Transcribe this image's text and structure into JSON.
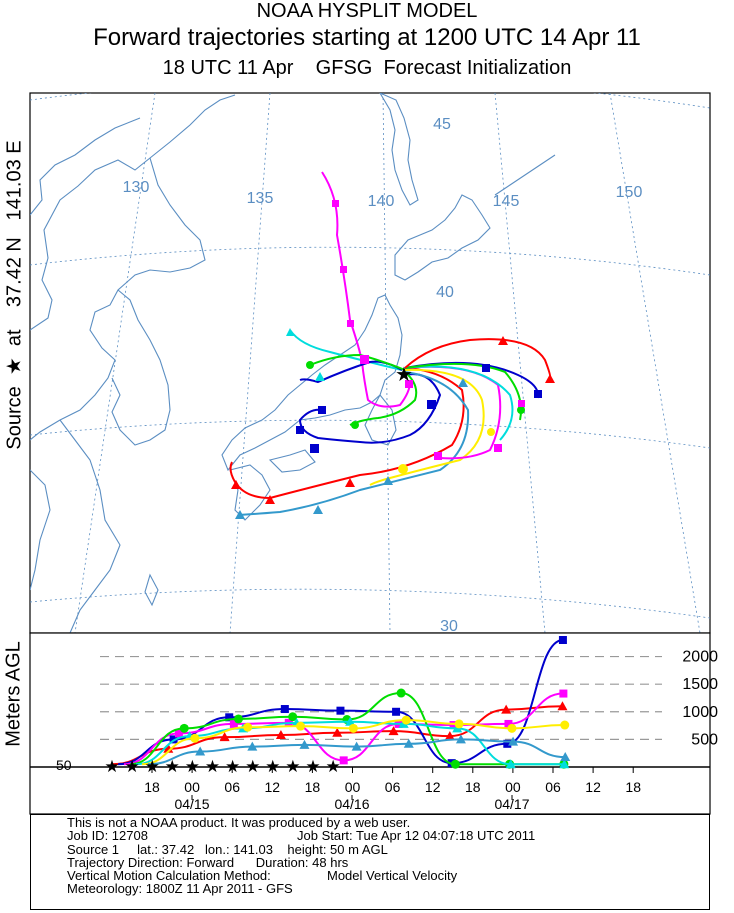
{
  "header": {
    "line1": "NOAA HYSPLIT MODEL",
    "line2": "Forward trajectories starting at 1200 UTC 14 Apr 11",
    "line3": "18 UTC 11 Apr    GFSG  Forecast Initialization"
  },
  "source_label": "Source  ★  at    37.42 N   141.03 E",
  "vertical_label": "Meters AGL",
  "map": {
    "lon_labels": [
      "130",
      "135",
      "140",
      "145",
      "150"
    ],
    "lat_labels": [
      "45",
      "40",
      "30"
    ],
    "colors": {
      "land": "#5b8ec2",
      "grid": "#5b8ec2",
      "frame": "#000000"
    }
  },
  "chart_data": {
    "type": "line",
    "title": "Forward trajectories starting at 1200 UTC 14 Apr 11",
    "ylabel": "Meters AGL",
    "y_ticks": [
      "2000",
      "1500",
      "1000",
      "500"
    ],
    "y_start_label": "50",
    "x_tick_labels": [
      "18",
      "00",
      "06",
      "12",
      "18",
      "00",
      "06",
      "12",
      "18",
      "00",
      "06",
      "12",
      "18"
    ],
    "date_labels": [
      "04/15",
      "04/16",
      "04/17"
    ],
    "ylim": [
      0,
      2300
    ],
    "x_hours_range": [
      -6,
      54
    ],
    "series": [
      {
        "color": "#ff0000",
        "x": [
          0,
          6,
          12,
          18,
          24,
          30,
          36,
          42,
          48
        ],
        "y": [
          50,
          330,
          540,
          580,
          620,
          650,
          560,
          1040,
          1100
        ]
      },
      {
        "color": "#0000cc",
        "x": [
          0,
          6,
          12,
          18,
          24,
          30,
          36,
          42,
          48
        ],
        "y": [
          50,
          500,
          900,
          1050,
          1020,
          1000,
          70,
          420,
          2300
        ]
      },
      {
        "color": "#ff00ff",
        "x": [
          0,
          6,
          12,
          18,
          24,
          30,
          36,
          42,
          48
        ],
        "y": [
          50,
          610,
          780,
          800,
          120,
          780,
          760,
          780,
          1330
        ]
      },
      {
        "color": "#00dd00",
        "x": [
          0,
          6,
          12,
          18,
          24,
          30,
          36,
          42,
          48
        ],
        "y": [
          50,
          700,
          870,
          910,
          860,
          1340,
          50,
          50,
          50
        ]
      },
      {
        "color": "#00dddd",
        "x": [
          0,
          6,
          12,
          18,
          24,
          30,
          36,
          42,
          48
        ],
        "y": [
          50,
          560,
          700,
          800,
          820,
          780,
          700,
          50,
          50
        ]
      },
      {
        "color": "#ffee00",
        "x": [
          0,
          6,
          12,
          18,
          24,
          30,
          36,
          42,
          48
        ],
        "y": [
          50,
          520,
          720,
          740,
          700,
          850,
          780,
          700,
          760
        ]
      },
      {
        "color": "#3399cc",
        "x": [
          0,
          6,
          12,
          18,
          24,
          30,
          36,
          42,
          48
        ],
        "y": [
          50,
          280,
          370,
          400,
          370,
          420,
          500,
          460,
          180
        ]
      }
    ]
  },
  "info": {
    "l1": "This is not a NOAA product. It was produced by a web user.",
    "l2a": "Job ID: 12708",
    "l2b": "Job Start: Tue Apr 12 04:07:18 UTC 2011",
    "l3": "Source 1     lat.: 37.42   lon.: 141.03    height: 50 m AGL",
    "l4": "Trajectory Direction: Forward      Duration: 48 hrs",
    "l5a": "Vertical Motion Calculation Method:",
    "l5b": "Model Vertical Velocity",
    "l6": "Meteorology: 1800Z 11 Apr 2011 - GFS"
  }
}
